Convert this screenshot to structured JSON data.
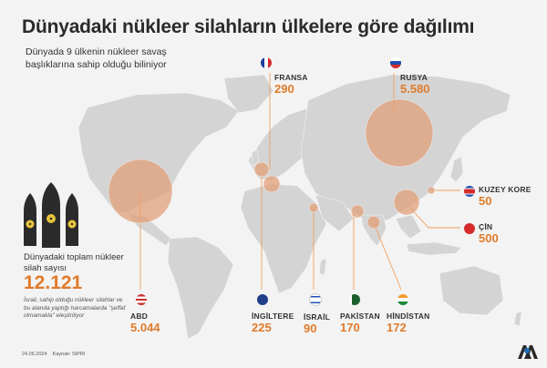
{
  "header": {
    "title": "Dünyadaki nükleer silahların ülkelere göre dağılımı",
    "subtitle": "Dünyada 9 ülkenin nükleer savaş başlıklarına sahip olduğu biliniyor"
  },
  "total": {
    "label": "Dünyadaki toplam nükleer silah sayısı",
    "value": "12.121",
    "note": "İsrail, sahip olduğu nükleer silahlar ve bu alanda yaptığı harcamalarda \"şeffaf olmamakla\" eleştiriliyor"
  },
  "countries": [
    {
      "key": "fransa",
      "name": "FRANSA",
      "value": "290",
      "count": 290
    },
    {
      "key": "rusya",
      "name": "RUSYA",
      "value": "5.580",
      "count": 5580
    },
    {
      "key": "kuzeykore",
      "name": "KUZEY KORE",
      "value": "50",
      "count": 50
    },
    {
      "key": "cin",
      "name": "ÇİN",
      "value": "500",
      "count": 500
    },
    {
      "key": "abd",
      "name": "ABD",
      "value": "5.044",
      "count": 5044
    },
    {
      "key": "ingiltere",
      "name": "İNGİLTERE",
      "value": "225",
      "count": 225
    },
    {
      "key": "israil",
      "name": "İSRAİL",
      "value": "90",
      "count": 90
    },
    {
      "key": "pakistan",
      "name": "PAKİSTAN",
      "value": "170",
      "count": 170
    },
    {
      "key": "hindistan",
      "name": "HİNDİSTAN",
      "value": "172",
      "count": 172
    }
  ],
  "footer": {
    "date": "24.06.2024",
    "source": "Kaynak: SIPRI"
  },
  "colors": {
    "accent": "#e07b2a",
    "bubble_fill": "#e2a07a",
    "land": "#d2d2d2",
    "background": "#f3f3f3",
    "leader": "#f0a060"
  }
}
